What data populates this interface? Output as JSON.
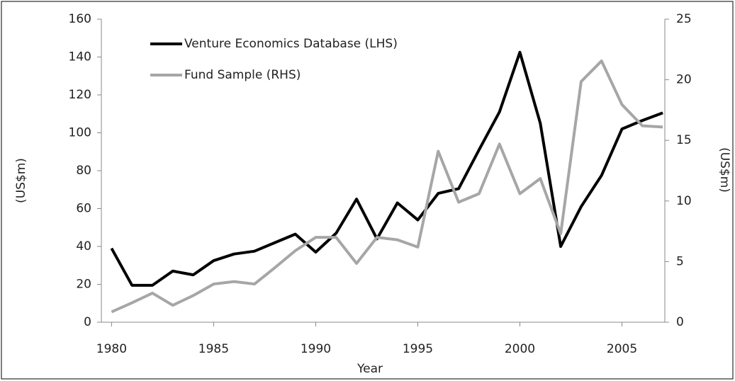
{
  "chart_data": {
    "type": "line",
    "x_label": "Year",
    "y_label": "(US$m)",
    "y2_label": "(US$m)",
    "x": [
      1980,
      1981,
      1982,
      1983,
      1984,
      1985,
      1986,
      1987,
      1988,
      1989,
      1990,
      1991,
      1992,
      1993,
      1994,
      1995,
      1996,
      1997,
      1998,
      1999,
      2000,
      2001,
      2002,
      2003,
      2004,
      2005,
      2006,
      2007
    ],
    "series": [
      {
        "name": "Venture Economics Database (LHS)",
        "color": "#000000",
        "values": [
          39,
          19.5,
          19.5,
          27,
          25,
          32.5,
          36,
          37.5,
          42,
          46.5,
          37,
          47,
          65,
          44,
          63,
          54,
          68,
          70.5,
          91,
          111,
          142.5,
          105,
          40,
          61,
          77.5,
          102,
          106.5,
          110.5
        ]
      },
      {
        "name": "Fund Sample (RHS)",
        "color": "#a6a6a6",
        "axis": "y2",
        "values": [
          0.85,
          1.6,
          2.4,
          1.4,
          2.2,
          3.15,
          3.35,
          3.15,
          4.5,
          5.9,
          7.0,
          7.0,
          4.85,
          7.0,
          6.8,
          6.2,
          14.1,
          9.9,
          10.6,
          14.7,
          10.6,
          11.85,
          7.3,
          19.85,
          21.55,
          17.95,
          16.2,
          16.1
        ]
      }
    ],
    "xlim": [
      1979.5,
      2007.1
    ],
    "xticks": [
      1980,
      1985,
      1990,
      1995,
      2000,
      2005
    ],
    "ylim": [
      0,
      160
    ],
    "yticks": [
      0,
      20,
      40,
      60,
      80,
      100,
      120,
      140,
      160
    ],
    "y2lim": [
      0,
      25
    ],
    "y2ticks": [
      0,
      5,
      10,
      15,
      20,
      25
    ],
    "legend": "top-left"
  }
}
